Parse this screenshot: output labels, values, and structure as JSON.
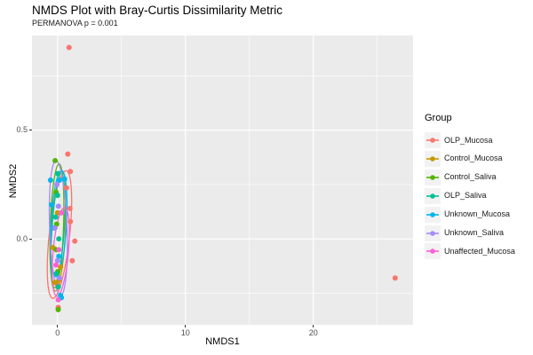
{
  "chart_data": {
    "type": "scatter",
    "title": "NMDS Plot with Bray-Curtis Dissimilarity Metric",
    "subtitle": "PERMANOVA p = 0.001",
    "xlabel": "NMDS1",
    "ylabel": "NMDS2",
    "xlim": [
      -2.0,
      27.8
    ],
    "ylim": [
      -0.395,
      0.935
    ],
    "x_major_ticks": [
      0,
      10,
      20
    ],
    "x_tick_labels": [
      "0",
      "10",
      "20"
    ],
    "x_minor_ticks": [
      5,
      15,
      25
    ],
    "y_major_ticks": [
      0.5,
      0.0
    ],
    "y_tick_labels": [
      "0.5",
      "0.0"
    ],
    "y_minor_ticks": [
      0.75,
      0.25,
      -0.25
    ],
    "grid": "on",
    "panel_bg": "#EBEBEB",
    "grid_color": "#FFFFFF",
    "legend": {
      "title": "Group",
      "position": "right"
    },
    "series": [
      {
        "name": "OLP_Mucosa",
        "color": "#F8766D",
        "points": [
          [
            0.9,
            0.88
          ],
          [
            0.8,
            0.39
          ],
          [
            1.0,
            0.31
          ],
          [
            0.7,
            0.235
          ],
          [
            0.97,
            0.14
          ],
          [
            1.0,
            0.08
          ],
          [
            1.35,
            -0.01
          ],
          [
            1.15,
            -0.1
          ],
          [
            0.0,
            -0.21
          ],
          [
            0.05,
            -0.315
          ],
          [
            26.4,
            -0.18
          ]
        ],
        "ellipse": {
          "cx": 0.15,
          "cy": 0.02,
          "rx": 0.8,
          "ry": 0.295,
          "rot": 6
        }
      },
      {
        "name": "Control_Mucosa",
        "color": "#C49A00",
        "points": [
          [
            -0.35,
            -0.04
          ],
          [
            0.23,
            -0.13
          ],
          [
            0.0,
            0.12
          ],
          [
            -0.2,
            -0.2
          ],
          [
            0.1,
            -0.19
          ]
        ],
        "ellipse": {
          "cx": 0.05,
          "cy": 0.02,
          "rx": 0.55,
          "ry": 0.26,
          "rot": 3
        }
      },
      {
        "name": "Control_Saliva",
        "color": "#53B400",
        "points": [
          [
            -0.19,
            0.36
          ],
          [
            -0.12,
            0.215
          ],
          [
            -0.07,
            0.068
          ],
          [
            -0.1,
            -0.05
          ],
          [
            0.02,
            -0.15
          ],
          [
            0.05,
            -0.325
          ]
        ],
        "ellipse": {
          "cx": -0.05,
          "cy": 0.06,
          "rx": 0.52,
          "ry": 0.285,
          "rot": 2
        }
      },
      {
        "name": "OLP_Saliva",
        "color": "#00C094",
        "points": [
          [
            0.0,
            0.2
          ],
          [
            0.02,
            0.3
          ],
          [
            -0.15,
            0.1
          ],
          [
            0.1,
            0.0
          ],
          [
            -0.1,
            -0.16
          ],
          [
            0.06,
            -0.22
          ]
        ],
        "ellipse": {
          "cx": 0.05,
          "cy": 0.05,
          "rx": 0.48,
          "ry": 0.26,
          "rot": 4
        }
      },
      {
        "name": "Unknown_Mucosa",
        "color": "#00B6EB",
        "points": [
          [
            -0.55,
            0.27
          ],
          [
            0.15,
            0.27
          ],
          [
            0.55,
            0.275
          ],
          [
            -0.47,
            0.157
          ],
          [
            -0.3,
            0.05
          ],
          [
            0.1,
            -0.08
          ],
          [
            0.23,
            -0.26
          ],
          [
            0.3,
            -0.27
          ]
        ],
        "ellipse": {
          "cx": 0.1,
          "cy": 0.07,
          "rx": 0.6,
          "ry": 0.245,
          "rot": 3
        }
      },
      {
        "name": "Unknown_Saliva",
        "color": "#A58AFF",
        "points": [
          [
            0.07,
            0.15
          ],
          [
            -0.05,
            0.25
          ],
          [
            -0.2,
            0.05
          ],
          [
            0.0,
            -0.1
          ],
          [
            0.15,
            -0.18
          ]
        ],
        "ellipse": {
          "cx": 0.06,
          "cy": 0.05,
          "rx": 0.68,
          "ry": 0.31,
          "rot": -2
        }
      },
      {
        "name": "Unaffected_Mucosa",
        "color": "#FB61D7",
        "points": [
          [
            0.1,
            -0.05
          ],
          [
            -0.12,
            -0.12
          ],
          [
            0.3,
            0.12
          ],
          [
            0.05,
            -0.28
          ]
        ],
        "ellipse": {
          "cx": 0.25,
          "cy": -0.06,
          "rx": 0.6,
          "ry": 0.205,
          "rot": 5
        }
      }
    ]
  }
}
